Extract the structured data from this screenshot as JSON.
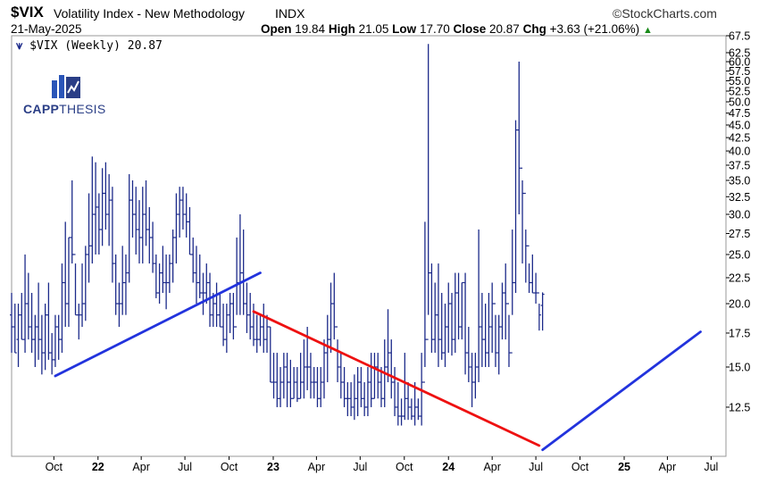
{
  "header": {
    "symbol": "$VIX",
    "name": "Volatility Index - New Methodology",
    "exchange": "INDX",
    "brand": "©StockCharts.com",
    "date": "21-May-2025",
    "open_label": "Open",
    "open": "19.84",
    "high_label": "High",
    "high": "21.05",
    "low_label": "Low",
    "low": "17.70",
    "close_label": "Close",
    "close": "20.87",
    "chg_label": "Chg",
    "chg": "+3.63 (+21.06%)",
    "chg_arrow": "▲"
  },
  "legend": {
    "text": "$VIX (Weekly) 20.87"
  },
  "logo": {
    "text_bold": "CAPP",
    "text_thin": "THESIS",
    "icon": "bar-chart-logo-icon"
  },
  "colors": {
    "bars": "#1c2a8a",
    "trend_up": "#2233dd",
    "trend_down": "#ee1111",
    "accent_up": "#1a8a1a"
  },
  "chart_data": {
    "type": "ohlc",
    "scale": "log",
    "interval": "weekly",
    "ylim": [
      10,
      67.5
    ],
    "y_ticks": [
      12.5,
      15.0,
      17.5,
      20.0,
      22.5,
      25.0,
      27.5,
      30.0,
      32.5,
      35.0,
      37.5,
      40.0,
      42.5,
      45.0,
      47.5,
      50.0,
      52.5,
      55.0,
      57.5,
      60.0,
      62.5,
      67.5
    ],
    "x_labels": [
      "Oct",
      "22",
      "Apr",
      "Jul",
      "Oct",
      "23",
      "Apr",
      "Jul",
      "Oct",
      "24",
      "Apr",
      "Jul",
      "Oct",
      "25",
      "Apr",
      "Jul"
    ],
    "x_label_dates": [
      "2021-10-01",
      "2022-01-01",
      "2022-04-01",
      "2022-07-01",
      "2022-10-01",
      "2023-01-01",
      "2023-04-01",
      "2023-07-01",
      "2023-10-01",
      "2024-01-01",
      "2024-04-01",
      "2024-07-01",
      "2024-10-01",
      "2025-01-01",
      "2025-04-01",
      "2025-07-01"
    ],
    "x_label_is_year": [
      false,
      true,
      false,
      false,
      false,
      true,
      false,
      false,
      false,
      true,
      false,
      false,
      false,
      true,
      false,
      false
    ],
    "x_start": "2021-07-05",
    "x_end": "2025-08-01",
    "grid": false,
    "legend_position": "top-left",
    "trendlines": [
      {
        "color": "red",
        "from": [
          "2022-11-21",
          19.3
        ],
        "to": [
          "2024-07-08",
          10.5
        ]
      },
      {
        "color": "blue",
        "from": [
          "2021-10-04",
          14.4
        ],
        "to": [
          "2022-12-05",
          23.0
        ]
      },
      {
        "color": "blue",
        "from": [
          "2024-07-15",
          10.3
        ],
        "to": [
          "2025-06-09",
          17.6
        ]
      }
    ],
    "series": [
      {
        "values": [
          [
            19,
            21,
            16,
            18
          ],
          [
            18,
            20,
            16,
            16
          ],
          [
            17,
            20,
            15,
            19
          ],
          [
            19,
            21,
            17,
            17
          ],
          [
            17,
            25,
            16,
            20
          ],
          [
            20,
            23,
            17,
            18
          ],
          [
            18,
            21,
            16,
            17
          ],
          [
            17,
            19,
            15,
            18
          ],
          [
            18,
            22,
            15.5,
            17
          ],
          [
            17,
            19,
            14.5,
            16
          ],
          [
            16,
            20,
            14.8,
            19
          ],
          [
            19,
            22,
            15.5,
            16
          ],
          [
            16,
            17.5,
            14.5,
            15.5
          ],
          [
            15.5,
            19,
            15,
            18
          ],
          [
            18,
            19,
            15.5,
            17
          ],
          [
            17,
            24,
            16,
            22
          ],
          [
            22,
            29,
            18,
            20
          ],
          [
            20,
            27,
            18,
            27
          ],
          [
            27,
            35,
            24,
            25
          ],
          [
            25,
            24,
            19,
            19
          ],
          [
            19,
            20,
            17,
            19
          ],
          [
            19,
            24,
            18,
            20
          ],
          [
            20,
            26,
            18.5,
            25
          ],
          [
            25,
            33,
            22,
            26
          ],
          [
            26,
            39,
            24,
            30
          ],
          [
            30,
            38,
            25,
            31
          ],
          [
            31,
            33,
            25,
            28
          ],
          [
            28,
            37,
            26,
            33
          ],
          [
            33,
            38,
            28,
            30
          ],
          [
            30,
            36,
            26,
            32
          ],
          [
            32,
            34,
            22,
            24
          ],
          [
            24,
            25,
            19,
            20
          ],
          [
            20,
            22,
            18,
            20
          ],
          [
            20,
            26,
            19,
            22
          ],
          [
            22,
            25,
            19,
            23
          ],
          [
            23,
            36,
            22,
            32
          ],
          [
            32,
            35,
            27,
            30
          ],
          [
            30,
            34,
            25,
            28
          ],
          [
            28,
            32,
            24,
            27
          ],
          [
            27,
            34,
            24,
            30
          ],
          [
            30,
            35,
            26,
            28
          ],
          [
            28,
            31,
            24,
            27
          ],
          [
            27,
            29,
            23,
            24
          ],
          [
            24,
            25,
            20.5,
            21
          ],
          [
            21,
            24,
            20,
            23
          ],
          [
            23,
            26,
            21,
            22
          ],
          [
            22,
            25,
            19.5,
            22
          ],
          [
            22,
            25,
            21,
            24
          ],
          [
            24,
            28,
            22,
            27
          ],
          [
            27,
            33,
            24,
            30
          ],
          [
            30,
            34,
            27,
            32
          ],
          [
            32,
            34,
            28,
            30
          ],
          [
            30,
            33,
            27,
            29
          ],
          [
            29,
            31,
            25,
            25
          ],
          [
            25,
            27,
            22,
            23
          ],
          [
            23,
            26,
            20,
            22
          ],
          [
            22,
            25,
            20.5,
            21
          ],
          [
            21,
            23,
            19,
            21
          ],
          [
            21,
            24,
            20,
            22
          ],
          [
            22,
            23,
            18,
            19
          ],
          [
            19,
            21,
            18,
            20
          ],
          [
            20,
            22,
            18,
            19
          ],
          [
            19,
            21,
            18,
            18
          ],
          [
            18,
            20,
            16.5,
            17
          ],
          [
            17,
            20,
            16,
            19
          ],
          [
            19,
            21,
            17.5,
            20
          ],
          [
            20,
            21,
            17,
            18
          ],
          [
            18,
            27,
            19,
            22
          ],
          [
            22,
            30,
            19,
            23
          ],
          [
            23,
            28,
            19,
            20
          ],
          [
            20,
            22,
            17.5,
            19
          ],
          [
            19,
            21,
            17,
            18
          ],
          [
            18,
            20,
            16.5,
            17
          ],
          [
            17,
            19,
            16,
            17
          ],
          [
            17,
            19,
            16.5,
            18
          ],
          [
            18,
            20,
            16,
            17
          ],
          [
            17,
            19,
            16,
            18
          ],
          [
            18,
            18,
            14,
            14
          ],
          [
            14,
            16,
            13,
            14
          ],
          [
            14,
            16,
            12.5,
            13
          ],
          [
            13,
            15,
            12.5,
            14
          ],
          [
            14,
            16,
            13,
            15
          ],
          [
            15,
            16,
            12.5,
            14
          ],
          [
            14,
            15.5,
            12.5,
            13
          ],
          [
            13,
            15,
            13,
            14
          ],
          [
            14,
            15,
            12.8,
            13
          ],
          [
            13,
            16,
            13,
            14
          ],
          [
            14,
            17,
            13,
            15
          ],
          [
            15,
            18,
            13.5,
            15
          ],
          [
            15,
            16,
            13,
            14
          ],
          [
            14,
            15,
            13,
            14
          ],
          [
            14,
            15,
            12.5,
            13
          ],
          [
            13,
            15,
            12.5,
            14
          ],
          [
            14,
            17,
            13,
            16
          ],
          [
            16,
            19,
            14,
            17
          ],
          [
            17,
            22,
            16,
            20
          ],
          [
            20,
            23,
            17,
            18
          ],
          [
            18,
            17,
            14,
            15
          ],
          [
            15,
            16,
            13,
            14
          ],
          [
            14,
            15,
            12.5,
            13
          ],
          [
            13,
            14,
            12,
            13
          ],
          [
            13,
            14,
            12,
            12.5
          ],
          [
            12.5,
            14.5,
            11.8,
            13
          ],
          [
            13,
            15,
            12,
            14
          ],
          [
            14,
            15,
            12.5,
            13
          ],
          [
            13,
            14,
            12,
            12.5
          ],
          [
            12.5,
            15,
            12,
            14
          ],
          [
            14,
            16,
            12.5,
            13
          ],
          [
            13,
            16,
            13,
            15
          ],
          [
            15,
            16,
            13,
            14
          ],
          [
            14,
            15,
            12.5,
            13
          ],
          [
            13,
            17,
            12.5,
            15
          ],
          [
            15,
            19.5,
            14,
            16
          ],
          [
            16,
            17,
            13,
            14
          ],
          [
            14,
            15,
            12,
            12.5
          ],
          [
            12.5,
            14,
            11.5,
            12
          ],
          [
            12,
            13,
            11.5,
            12
          ],
          [
            12,
            16,
            11.8,
            13
          ],
          [
            13,
            14,
            11.8,
            12.5
          ],
          [
            12.5,
            13,
            11.8,
            12
          ],
          [
            12,
            14,
            11.5,
            12.5
          ],
          [
            12.5,
            13,
            11.8,
            12
          ],
          [
            12,
            16,
            11.5,
            14
          ],
          [
            14,
            29,
            15,
            17
          ],
          [
            17,
            65,
            19,
            23
          ],
          [
            23,
            24,
            16,
            17
          ],
          [
            17,
            22,
            16,
            19
          ],
          [
            19,
            24,
            15,
            17
          ],
          [
            17,
            21,
            15.5,
            16
          ],
          [
            16,
            20,
            15,
            18
          ],
          [
            18,
            22,
            16,
            20
          ],
          [
            20,
            21,
            15.8,
            17
          ],
          [
            17,
            23,
            16,
            21
          ],
          [
            21,
            23,
            17,
            18
          ],
          [
            18,
            22,
            17,
            22
          ],
          [
            22,
            23,
            14.5,
            16
          ],
          [
            16,
            18,
            14,
            15
          ],
          [
            15,
            16,
            12.5,
            14
          ],
          [
            14,
            16,
            13,
            15
          ],
          [
            15,
            28,
            14,
            18
          ],
          [
            18,
            21,
            15,
            17
          ],
          [
            17,
            20,
            15,
            16
          ],
          [
            16,
            21,
            15,
            18
          ],
          [
            18,
            22,
            16,
            20
          ],
          [
            20,
            19,
            15,
            16
          ],
          [
            16,
            19,
            14.5,
            18
          ],
          [
            18,
            22,
            17,
            21
          ],
          [
            21,
            24,
            17,
            20
          ],
          [
            20,
            19,
            15,
            16
          ],
          [
            16,
            28,
            19,
            22
          ],
          [
            22,
            46,
            21,
            44
          ],
          [
            44,
            60,
            30,
            37
          ],
          [
            37,
            35,
            24,
            33
          ],
          [
            33,
            28,
            22,
            26
          ],
          [
            26,
            24,
            21,
            22
          ],
          [
            22,
            25,
            21,
            21
          ],
          [
            21,
            23,
            20,
            21
          ],
          [
            21,
            20,
            17.7,
            19
          ],
          [
            19.84,
            21.05,
            17.7,
            20.87
          ]
        ]
      }
    ]
  }
}
